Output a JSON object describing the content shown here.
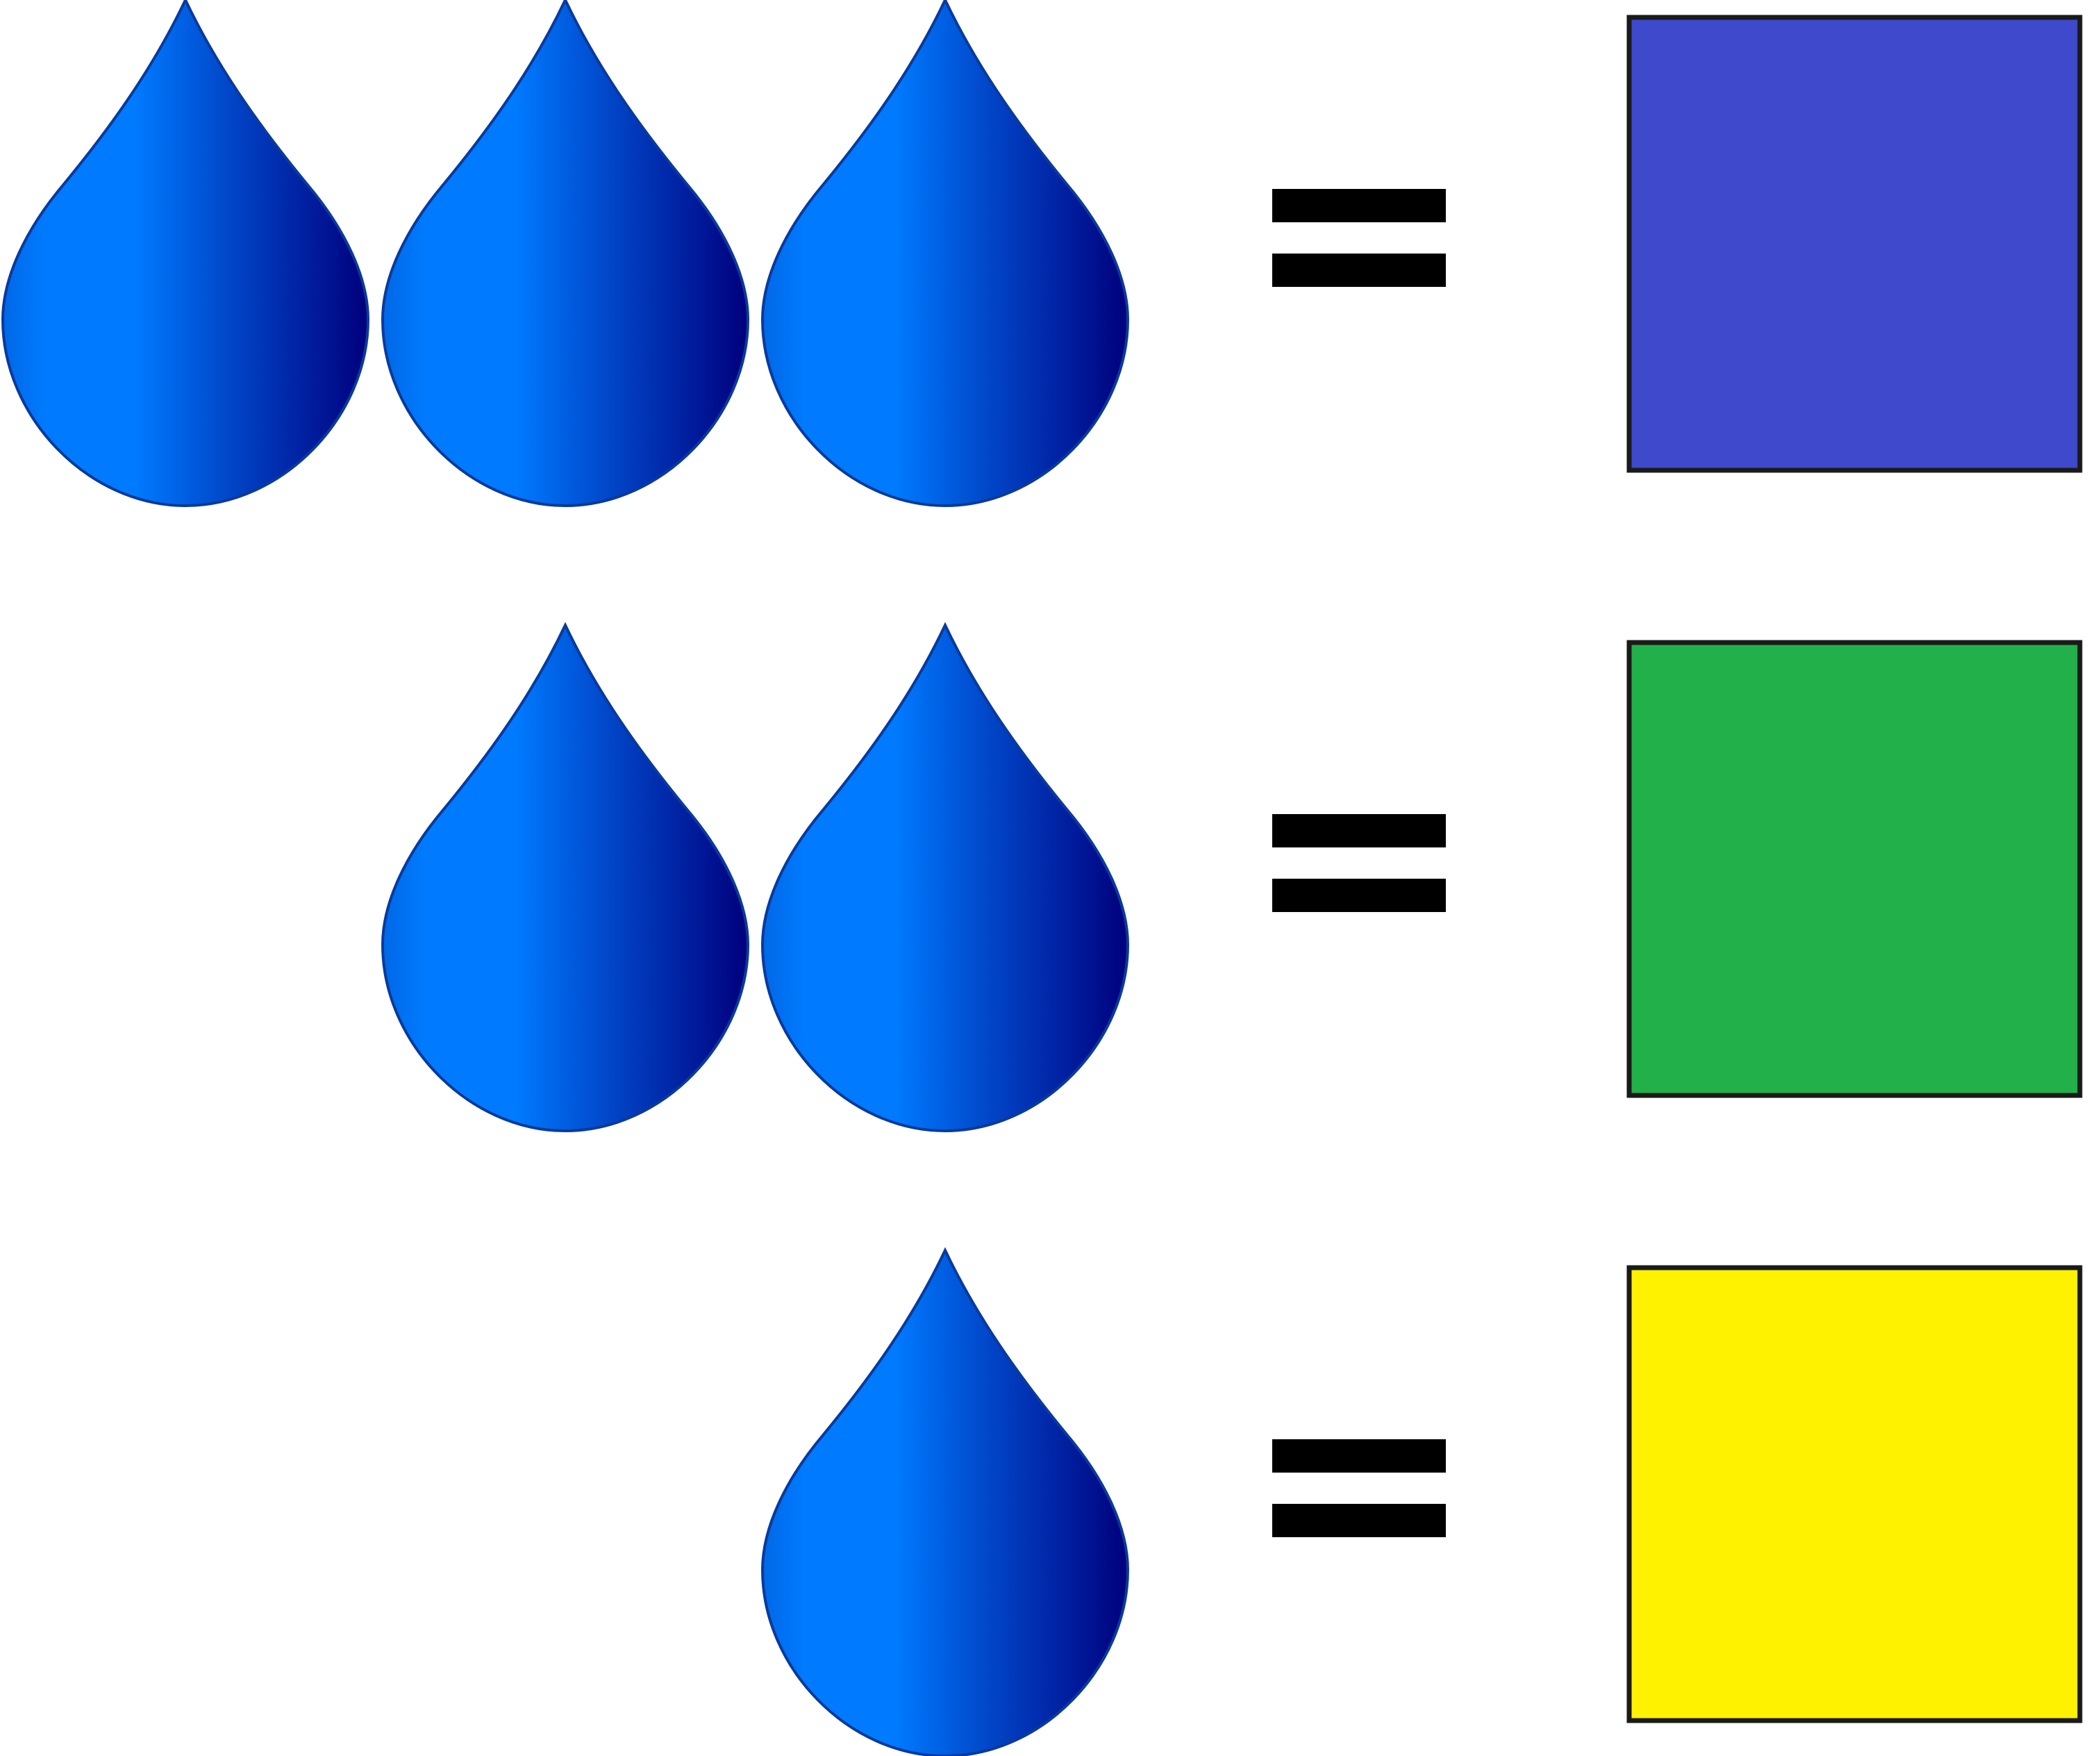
{
  "rows": [
    {
      "drops": 3,
      "result_color": "#3f49cc"
    },
    {
      "drops": 2,
      "result_color": "#22b04b"
    },
    {
      "drops": 1,
      "result_color": "#fff200"
    }
  ],
  "icons": {
    "drop": "water-drop-icon",
    "equals": "equals-sign",
    "result": "color-square"
  },
  "colors": {
    "drop_light": "#007bff",
    "drop_dark": "#00007c",
    "drop_outline": "#0a3a9c",
    "equals": "#000000",
    "square_border": "#1a1a1a",
    "background": "#ffffff"
  }
}
